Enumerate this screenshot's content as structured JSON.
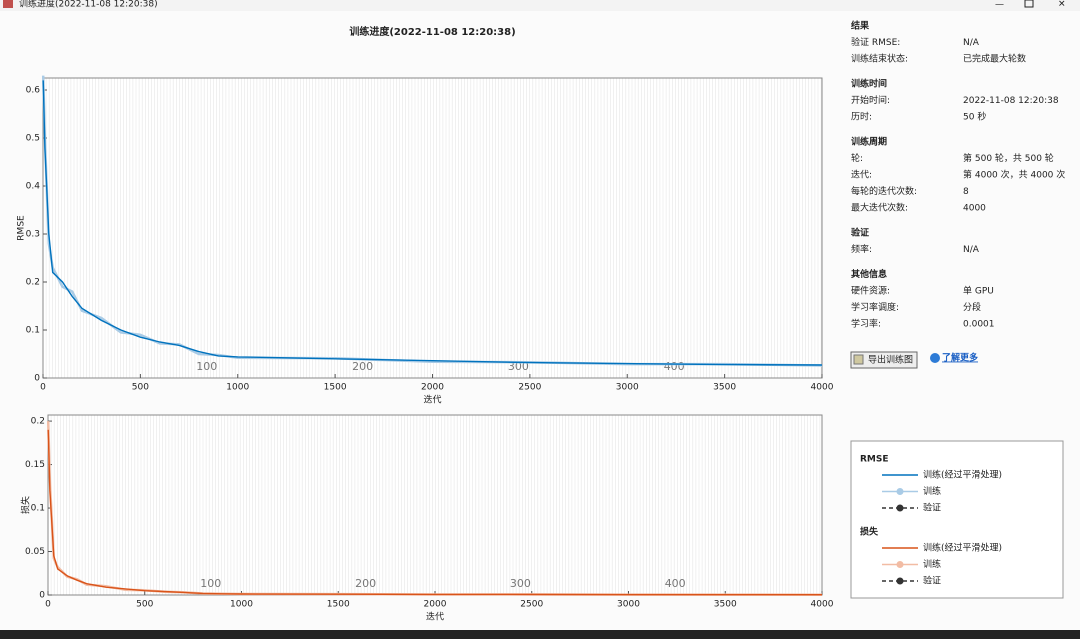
{
  "window": {
    "title": "训练进度(2022-11-08 12:20:38)"
  },
  "chart_data": [
    {
      "type": "line",
      "title": "训练进度(2022-11-08 12:20:38)",
      "xlabel": "迭代",
      "ylabel": "RMSE",
      "x": [
        1,
        10,
        30,
        50,
        100,
        150,
        200,
        300,
        400,
        500,
        600,
        700,
        800,
        900,
        1000,
        1500,
        2000,
        2500,
        3000,
        3500,
        4000
      ],
      "series": [
        {
          "name": "训练",
          "color": "#a9cbe6",
          "values": [
            0.63,
            0.5,
            0.28,
            0.23,
            0.19,
            0.18,
            0.14,
            0.125,
            0.095,
            0.09,
            0.072,
            0.07,
            0.05,
            0.048,
            0.042,
            0.041,
            0.034,
            0.033,
            0.029,
            0.029,
            0.026
          ]
        },
        {
          "name": "训练(经过平滑处理)",
          "color": "#0072bd",
          "values": [
            0.62,
            0.48,
            0.3,
            0.22,
            0.2,
            0.17,
            0.145,
            0.12,
            0.1,
            0.085,
            0.075,
            0.068,
            0.055,
            0.046,
            0.044,
            0.04,
            0.036,
            0.032,
            0.03,
            0.028,
            0.027
          ]
        }
      ],
      "xlim": [
        0,
        4000
      ],
      "xticks": [
        0,
        500,
        1000,
        1500,
        2000,
        2500,
        3000,
        3500,
        4000
      ],
      "ylim": [
        0,
        0.625
      ],
      "yticks": [
        0,
        0.1,
        0.2,
        0.3,
        0.4,
        0.5,
        0.6
      ],
      "epoch_labels": [
        {
          "value": 800,
          "label": "100"
        },
        {
          "value": 1600,
          "label": "200"
        },
        {
          "value": 2400,
          "label": "300"
        },
        {
          "value": 3200,
          "label": "400"
        }
      ]
    },
    {
      "type": "line",
      "xlabel": "迭代",
      "ylabel": "损失",
      "x": [
        1,
        10,
        30,
        50,
        100,
        150,
        200,
        300,
        400,
        500,
        600,
        700,
        800,
        900,
        1000,
        1500,
        2000,
        2500,
        3000,
        3500,
        4000
      ],
      "series": [
        {
          "name": "训练",
          "color": "#f2bca4",
          "values": [
            0.2,
            0.13,
            0.042,
            0.032,
            0.021,
            0.018,
            0.012,
            0.01,
            0.006,
            0.0055,
            0.0038,
            0.0032,
            0.0017,
            0.0015,
            0.0011,
            0.001,
            0.0006,
            0.0007,
            0.0004,
            0.0005,
            0.0003
          ]
        },
        {
          "name": "训练(经过平滑处理)",
          "color": "#d95319",
          "values": [
            0.19,
            0.12,
            0.045,
            0.03,
            0.022,
            0.017,
            0.013,
            0.009,
            0.007,
            0.005,
            0.004,
            0.003,
            0.0018,
            0.0014,
            0.0012,
            0.0009,
            0.0007,
            0.0006,
            0.0005,
            0.0004,
            0.0004
          ]
        }
      ],
      "xlim": [
        0,
        4000
      ],
      "xticks": [
        0,
        500,
        1000,
        1500,
        2000,
        2500,
        3000,
        3500,
        4000
      ],
      "ylim": [
        0,
        0.207
      ],
      "yticks": [
        0,
        0.05,
        0.1,
        0.15,
        0.2
      ],
      "epoch_labels": [
        {
          "value": 800,
          "label": "100"
        },
        {
          "value": 1600,
          "label": "200"
        },
        {
          "value": 2400,
          "label": "300"
        },
        {
          "value": 3200,
          "label": "400"
        }
      ]
    }
  ],
  "info": {
    "sections": [
      {
        "heading": "结果",
        "rows": [
          [
            "验证 RMSE:",
            "N/A"
          ],
          [
            "训练结束状态:",
            "已完成最大轮数"
          ]
        ]
      },
      {
        "heading": "训练时间",
        "rows": [
          [
            "开始时间:",
            "2022-11-08 12:20:38"
          ],
          [
            "历时:",
            "50 秒"
          ]
        ]
      },
      {
        "heading": "训练周期",
        "rows": [
          [
            "轮:",
            "第 500 轮，共 500 轮"
          ],
          [
            "迭代:",
            "第 4000 次，共 4000 次"
          ],
          [
            "每轮的迭代次数:",
            "8"
          ],
          [
            "最大迭代次数:",
            "4000"
          ]
        ]
      },
      {
        "heading": "验证",
        "rows": [
          [
            "频率:",
            "N/A"
          ]
        ]
      },
      {
        "heading": "其他信息",
        "rows": [
          [
            "硬件资源:",
            "单 GPU"
          ],
          [
            "学习率调度:",
            "分段"
          ],
          [
            "学习率:",
            "0.0001"
          ]
        ]
      }
    ]
  },
  "buttons": {
    "export": "导出训练图",
    "learn_more": "了解更多"
  },
  "legend": {
    "groups": [
      {
        "title": "RMSE",
        "validation": "验证"
      },
      {
        "title": "损失",
        "validation": "验证"
      }
    ]
  }
}
